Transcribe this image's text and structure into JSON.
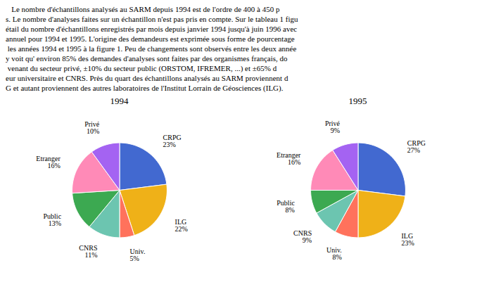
{
  "chart_data": [
    {
      "type": "pie",
      "title": "1994",
      "categories": [
        "CRPG",
        "ILG",
        "Univ.",
        "CNRS",
        "Public",
        "Etranger",
        "Privé"
      ],
      "values": [
        23,
        22,
        5,
        11,
        13,
        16,
        10
      ],
      "value_labels": [
        "23%",
        "22%",
        "5%",
        "11%",
        "13%",
        "16%",
        "10%"
      ],
      "data_labels": true,
      "annotations": [
        "   Le nombre d'échantillons analysés au SARM depuis 1994 est de l'ordre de 400 à 450 p",
        "s. Le nombre d'analyses faites sur un échantillon n'est pas pris en compte. Sur le tableau 1 figu",
        "étail du nombre d'échantillons enregistrés par mois depuis janvier 1994 jusqu'à juin 1996 avec",
        "annuel pour 1994 et 1995. L'origine des demandeurs est exprimée sous forme de pourcentage",
        " les années 1994 et 1995 à la figure 1. Peu de changements sont observés entre les deux année",
        "y voit qu' environ 85% des demandes d'analyses sont faites par des organismes français, do",
        " venant du secteur privé, ±10% du secteur public (ORSTOM, IFREMER, ...) et ±65% d",
        "eur universitaire et CNRS. Près du quart des échantillons analysés au SARM proviennent d",
        "G et autant proviennent des autres laboratoires de l'Institut Lorrain de Géosciences (ILG)."
      ]
    },
    {
      "type": "pie",
      "title": "1995",
      "categories": [
        "CRPG",
        "ILG",
        "Univ.",
        "CNRS",
        "Public",
        "Etranger",
        "Privé"
      ],
      "values": [
        27,
        23,
        8,
        9,
        8,
        16,
        9
      ],
      "value_labels": [
        "27%",
        "23%",
        "8%",
        "9%",
        "8%",
        "16%",
        "9%"
      ],
      "data_labels": true
    }
  ]
}
